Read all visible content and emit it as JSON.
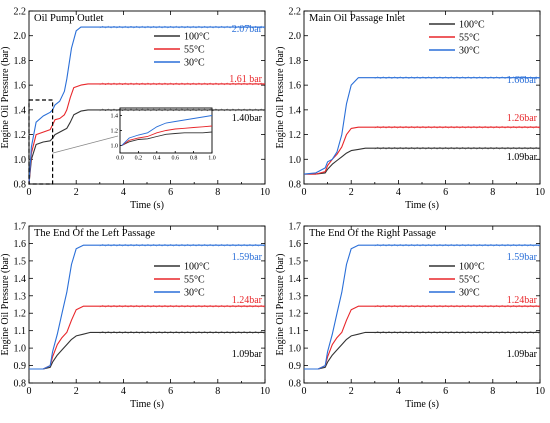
{
  "colors": {
    "100C": "#333333",
    "55C": "#e8262a",
    "30C": "#2a6fd8"
  },
  "chart_data": [
    {
      "type": "line",
      "title": "Oil Pump Outlet",
      "xlabel": "Time (s)",
      "ylabel": "Engine Oil Pressure (bar)",
      "xlim": [
        0,
        10
      ],
      "ylim": [
        0.8,
        2.2
      ],
      "xticks": [
        "0",
        "2",
        "4",
        "6",
        "8",
        "10"
      ],
      "yticks": [
        "0.8",
        "1.0",
        "1.2",
        "1.4",
        "1.6",
        "1.8",
        "2.0",
        "2.2"
      ],
      "legend": [
        "100°C",
        "55°C",
        "30°C"
      ],
      "legend_position": "top-right",
      "series": [
        {
          "name": "100°C",
          "color": "#333333",
          "x": [
            0,
            0.1,
            0.3,
            0.6,
            0.9,
            1.0,
            1.1,
            1.3,
            1.5,
            1.6,
            1.75,
            1.9,
            2.2,
            2.5,
            3,
            4,
            10
          ],
          "y": [
            0.8,
            1.0,
            1.12,
            1.14,
            1.15,
            1.17,
            1.2,
            1.22,
            1.24,
            1.25,
            1.3,
            1.36,
            1.39,
            1.4,
            1.4,
            1.4,
            1.4
          ]
        },
        {
          "name": "55°C",
          "color": "#e8262a",
          "x": [
            0,
            0.1,
            0.3,
            0.6,
            0.9,
            1.0,
            1.1,
            1.3,
            1.5,
            1.6,
            1.75,
            1.9,
            2.2,
            2.5,
            3,
            4,
            10
          ],
          "y": [
            0.8,
            1.05,
            1.2,
            1.22,
            1.24,
            1.28,
            1.32,
            1.33,
            1.36,
            1.4,
            1.5,
            1.58,
            1.6,
            1.61,
            1.61,
            1.61,
            1.61
          ]
        },
        {
          "name": "30°C",
          "color": "#2a6fd8",
          "x": [
            0,
            0.1,
            0.3,
            0.6,
            0.9,
            1.0,
            1.1,
            1.3,
            1.5,
            1.6,
            1.8,
            2.0,
            2.2,
            2.5,
            3,
            4,
            10
          ],
          "y": [
            0.8,
            1.1,
            1.3,
            1.35,
            1.38,
            1.4,
            1.44,
            1.47,
            1.55,
            1.65,
            1.9,
            2.04,
            2.07,
            2.07,
            2.07,
            2.07,
            2.07
          ]
        }
      ],
      "annotations": [
        {
          "text": "2.07bar",
          "color": "#2a6fd8"
        },
        {
          "text": "1.61 bar",
          "color": "#e8262a"
        },
        {
          "text": "1.40bar",
          "color": "#000000"
        }
      ],
      "inset": {
        "xlim": [
          0,
          1.0
        ],
        "ylim": [
          0.9,
          1.5
        ],
        "xticks": [
          "0.0",
          "0.2",
          "0.4",
          "0.6",
          "0.8",
          "1.0"
        ],
        "yticks": [
          "1.0",
          "1.2",
          "1.4"
        ]
      }
    },
    {
      "type": "line",
      "title": "Main Oil Passage Inlet",
      "xlabel": "Time (s)",
      "ylabel": "Engine Oil Pressure (bar)",
      "xlim": [
        0,
        10
      ],
      "ylim": [
        0.8,
        2.2
      ],
      "xticks": [
        "0",
        "2",
        "4",
        "6",
        "8",
        "10"
      ],
      "yticks": [
        "0.8",
        "1.0",
        "1.2",
        "1.4",
        "1.6",
        "1.8",
        "2.0",
        "2.2"
      ],
      "legend": [
        "100°C",
        "55°C",
        "30°C"
      ],
      "legend_position": "top-right",
      "series": [
        {
          "name": "100°C",
          "color": "#333333",
          "x": [
            0,
            0.5,
            0.9,
            1.0,
            1.2,
            1.4,
            1.6,
            1.8,
            2.0,
            2.3,
            2.6,
            3,
            4,
            10
          ],
          "y": [
            0.88,
            0.88,
            0.89,
            0.92,
            0.96,
            0.99,
            1.02,
            1.05,
            1.07,
            1.08,
            1.09,
            1.09,
            1.09,
            1.09
          ]
        },
        {
          "name": "55°C",
          "color": "#e8262a",
          "x": [
            0,
            0.5,
            0.9,
            1.0,
            1.2,
            1.4,
            1.6,
            1.8,
            2.0,
            2.3,
            2.6,
            3,
            4,
            10
          ],
          "y": [
            0.88,
            0.88,
            0.9,
            0.95,
            1.0,
            1.04,
            1.1,
            1.2,
            1.25,
            1.26,
            1.26,
            1.26,
            1.26,
            1.26
          ]
        },
        {
          "name": "30°C",
          "color": "#2a6fd8",
          "x": [
            0,
            0.5,
            0.9,
            1.0,
            1.2,
            1.4,
            1.6,
            1.8,
            2.0,
            2.3,
            2.6,
            3,
            4,
            10
          ],
          "y": [
            0.88,
            0.89,
            0.93,
            0.98,
            1.0,
            1.06,
            1.2,
            1.45,
            1.6,
            1.66,
            1.66,
            1.66,
            1.66,
            1.66
          ]
        }
      ],
      "annotations": [
        {
          "text": "1.66bar",
          "color": "#2a6fd8"
        },
        {
          "text": "1.26bar",
          "color": "#e8262a"
        },
        {
          "text": "1.09bar",
          "color": "#000000"
        }
      ]
    },
    {
      "type": "line",
      "title": "The End Of the Left Passage",
      "xlabel": "Time (s)",
      "ylabel": "Engine Oil Pressure (bar)",
      "xlim": [
        0,
        10
      ],
      "ylim": [
        0.8,
        1.7
      ],
      "xticks": [
        "0",
        "2",
        "4",
        "6",
        "8",
        "10"
      ],
      "yticks": [
        "0.8",
        "0.9",
        "1.0",
        "1.1",
        "1.2",
        "1.3",
        "1.4",
        "1.5",
        "1.6",
        "1.7"
      ],
      "legend": [
        "100°C",
        "55°C",
        "30°C"
      ],
      "legend_position": "center-right",
      "series": [
        {
          "name": "100°C",
          "color": "#333333",
          "x": [
            0,
            0.6,
            0.9,
            1.0,
            1.2,
            1.4,
            1.6,
            1.8,
            2.0,
            2.3,
            2.6,
            3,
            4,
            10
          ],
          "y": [
            0.88,
            0.88,
            0.89,
            0.92,
            0.96,
            0.99,
            1.02,
            1.05,
            1.07,
            1.08,
            1.09,
            1.09,
            1.09,
            1.09
          ]
        },
        {
          "name": "55°C",
          "color": "#e8262a",
          "x": [
            0,
            0.6,
            0.9,
            1.0,
            1.2,
            1.4,
            1.6,
            1.8,
            2.0,
            2.3,
            2.6,
            3,
            4,
            10
          ],
          "y": [
            0.88,
            0.88,
            0.9,
            0.95,
            1.02,
            1.06,
            1.09,
            1.16,
            1.22,
            1.24,
            1.24,
            1.24,
            1.24,
            1.24
          ]
        },
        {
          "name": "30°C",
          "color": "#2a6fd8",
          "x": [
            0,
            0.6,
            0.9,
            1.0,
            1.2,
            1.4,
            1.6,
            1.8,
            2.0,
            2.3,
            2.6,
            3,
            4,
            10
          ],
          "y": [
            0.88,
            0.88,
            0.9,
            0.98,
            1.08,
            1.2,
            1.32,
            1.48,
            1.57,
            1.59,
            1.59,
            1.59,
            1.59,
            1.59
          ]
        }
      ],
      "annotations": [
        {
          "text": "1.59bar",
          "color": "#2a6fd8"
        },
        {
          "text": "1.24bar",
          "color": "#e8262a"
        },
        {
          "text": "1.09bar",
          "color": "#000000"
        }
      ]
    },
    {
      "type": "line",
      "title": "The End Of the Right Passage",
      "xlabel": "Time (s)",
      "ylabel": "Engine Oil Pressure (bar)",
      "xlim": [
        0,
        10
      ],
      "ylim": [
        0.8,
        1.7
      ],
      "xticks": [
        "0",
        "2",
        "4",
        "6",
        "8",
        "10"
      ],
      "yticks": [
        "0.8",
        "0.9",
        "1.0",
        "1.1",
        "1.2",
        "1.3",
        "1.4",
        "1.5",
        "1.6",
        "1.7"
      ],
      "legend": [
        "100°C",
        "55°C",
        "30°C"
      ],
      "legend_position": "center-right",
      "series": [
        {
          "name": "100°C",
          "color": "#333333",
          "x": [
            0,
            0.6,
            0.9,
            1.0,
            1.2,
            1.4,
            1.6,
            1.8,
            2.0,
            2.3,
            2.6,
            3,
            4,
            10
          ],
          "y": [
            0.88,
            0.88,
            0.89,
            0.92,
            0.96,
            0.99,
            1.02,
            1.05,
            1.07,
            1.08,
            1.09,
            1.09,
            1.09,
            1.09
          ]
        },
        {
          "name": "55°C",
          "color": "#e8262a",
          "x": [
            0,
            0.6,
            0.9,
            1.0,
            1.2,
            1.4,
            1.6,
            1.8,
            2.0,
            2.3,
            2.6,
            3,
            4,
            10
          ],
          "y": [
            0.88,
            0.88,
            0.9,
            0.95,
            1.02,
            1.06,
            1.09,
            1.16,
            1.22,
            1.24,
            1.24,
            1.24,
            1.24,
            1.24
          ]
        },
        {
          "name": "30°C",
          "color": "#2a6fd8",
          "x": [
            0,
            0.6,
            0.9,
            1.0,
            1.2,
            1.4,
            1.6,
            1.8,
            2.0,
            2.3,
            2.6,
            3,
            4,
            10
          ],
          "y": [
            0.88,
            0.88,
            0.9,
            0.98,
            1.08,
            1.2,
            1.32,
            1.48,
            1.57,
            1.59,
            1.59,
            1.59,
            1.59,
            1.59
          ]
        }
      ],
      "annotations": [
        {
          "text": "1.59bar",
          "color": "#2a6fd8"
        },
        {
          "text": "1.24bar",
          "color": "#e8262a"
        },
        {
          "text": "1.09bar",
          "color": "#000000"
        }
      ]
    }
  ]
}
